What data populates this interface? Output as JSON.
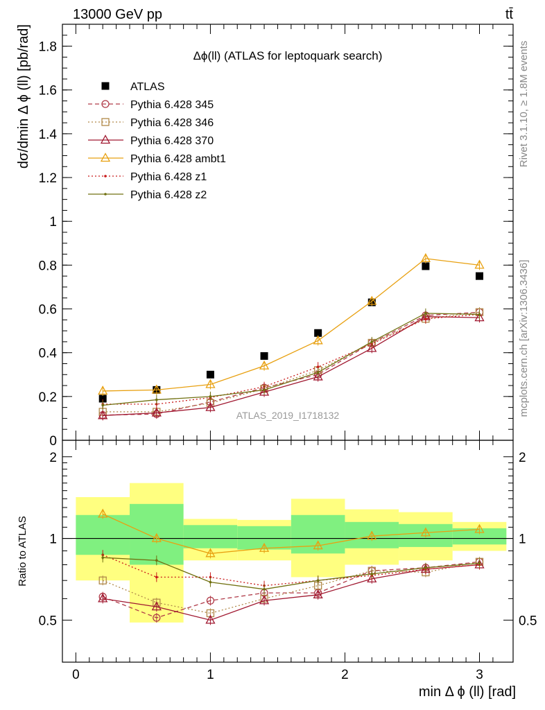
{
  "header": {
    "energy_label": "13000 GeV pp",
    "process_label": "tt̄"
  },
  "side_text": {
    "rivet": "Rivet 3.1.10, ≥ 1.8M events",
    "mcplots": "mcplots.cern.ch [arXiv:1306.3436]"
  },
  "chart_data": [
    {
      "type": "scatter",
      "title": "Δϕ(ll) (ATLAS for leptoquark search)",
      "watermark": "ATLAS_2019_I1718132",
      "xlabel": "min Δ ϕ (ll) [rad]",
      "ylabel": "dσ/dmin Δ ϕ (ll) [pb/rad]",
      "xlim": [
        -0.1,
        3.25
      ],
      "ylim": [
        0,
        1.9
      ],
      "x_ticks": [
        0,
        1,
        2,
        3
      ],
      "y_ticks": [
        0,
        0.2,
        0.4,
        0.6,
        0.8,
        1,
        1.2,
        1.4,
        1.6,
        1.8
      ],
      "y_tick_labels": [
        "0",
        "0.2",
        "0.4",
        "0.6",
        "0.8",
        "1",
        "1.2",
        "1.4",
        "1.6",
        "1.8"
      ],
      "legend_position": "top-left",
      "x": [
        0.2,
        0.6,
        1.0,
        1.4,
        1.8,
        2.2,
        2.6,
        3.0
      ],
      "series": [
        {
          "name": "ATLAS",
          "color": "#000000",
          "marker": "filled-square",
          "line": "none",
          "values": [
            0.19,
            0.23,
            0.3,
            0.385,
            0.49,
            0.63,
            0.795,
            0.75
          ]
        },
        {
          "name": "Pythia 6.428 345",
          "color": "#b03a48",
          "marker": "open-circle",
          "line": "dashed",
          "values": [
            0.115,
            0.12,
            0.175,
            0.24,
            0.3,
            0.445,
            0.57,
            0.585
          ]
        },
        {
          "name": "Pythia 6.428 346",
          "color": "#b08848",
          "marker": "open-square",
          "line": "dotted",
          "values": [
            0.13,
            0.13,
            0.17,
            0.235,
            0.32,
            0.445,
            0.555,
            0.585
          ]
        },
        {
          "name": "Pythia 6.428 370",
          "color": "#a01830",
          "marker": "open-triangle",
          "line": "solid",
          "values": [
            0.113,
            0.125,
            0.15,
            0.22,
            0.29,
            0.42,
            0.565,
            0.56
          ]
        },
        {
          "name": "Pythia 6.428 ambt1",
          "color": "#e8a010",
          "marker": "open-triangle",
          "line": "solid",
          "values": [
            0.225,
            0.23,
            0.255,
            0.34,
            0.455,
            0.635,
            0.83,
            0.8
          ]
        },
        {
          "name": "Pythia 6.428 z1",
          "color": "#c81818",
          "marker": "dot",
          "line": "dotted",
          "values": [
            0.165,
            0.165,
            0.195,
            0.245,
            0.335,
            0.44,
            0.555,
            0.575
          ]
        },
        {
          "name": "Pythia 6.428 z2",
          "color": "#707010",
          "marker": "dot",
          "line": "solid",
          "values": [
            0.16,
            0.185,
            0.2,
            0.23,
            0.31,
            0.45,
            0.58,
            0.575
          ]
        }
      ]
    },
    {
      "type": "scatter",
      "ylabel": "Ratio to ATLAS",
      "xlabel": "min Δ ϕ (ll) [rad]",
      "ylim": [
        0.35,
        2.3
      ],
      "y_ticks": [
        0.5,
        1,
        2
      ],
      "y_tick_labels": [
        "0.5",
        "1",
        "2"
      ],
      "reference_line": 1,
      "bins": [
        [
          0,
          0.4
        ],
        [
          0.4,
          0.8
        ],
        [
          0.8,
          1.2
        ],
        [
          1.2,
          1.6
        ],
        [
          1.6,
          2.0
        ],
        [
          2.0,
          2.4
        ],
        [
          2.4,
          2.8
        ],
        [
          2.8,
          3.2
        ]
      ],
      "band_outer": [
        [
          0.7,
          1.42
        ],
        [
          0.49,
          1.6
        ],
        [
          0.83,
          1.18
        ],
        [
          0.83,
          1.17
        ],
        [
          0.72,
          1.4
        ],
        [
          0.8,
          1.28
        ],
        [
          0.83,
          1.25
        ],
        [
          0.9,
          1.15
        ]
      ],
      "band_inner": [
        [
          0.87,
          1.22
        ],
        [
          0.8,
          1.34
        ],
        [
          0.92,
          1.12
        ],
        [
          0.91,
          1.11
        ],
        [
          0.88,
          1.22
        ],
        [
          0.92,
          1.15
        ],
        [
          0.93,
          1.13
        ],
        [
          0.95,
          1.09
        ]
      ],
      "x": [
        0.2,
        0.6,
        1.0,
        1.4,
        1.8,
        2.2,
        2.6,
        3.0
      ],
      "series": [
        {
          "name": "Pythia 6.428 345",
          "color": "#b03a48",
          "values": [
            0.61,
            0.51,
            0.59,
            0.63,
            0.63,
            0.76,
            0.78,
            0.82
          ]
        },
        {
          "name": "Pythia 6.428 346",
          "color": "#b08848",
          "values": [
            0.7,
            0.58,
            0.53,
            0.6,
            0.67,
            0.76,
            0.75,
            0.82
          ]
        },
        {
          "name": "Pythia 6.428 370",
          "color": "#a01830",
          "values": [
            0.6,
            0.56,
            0.5,
            0.59,
            0.62,
            0.71,
            0.77,
            0.8
          ]
        },
        {
          "name": "Pythia 6.428 ambt1",
          "color": "#e8a010",
          "values": [
            1.23,
            1.0,
            0.88,
            0.92,
            0.94,
            1.02,
            1.05,
            1.08
          ]
        },
        {
          "name": "Pythia 6.428 z1",
          "color": "#c81818",
          "values": [
            0.87,
            0.72,
            0.72,
            0.67,
            0.7,
            0.73,
            0.77,
            0.8
          ]
        },
        {
          "name": "Pythia 6.428 z2",
          "color": "#707010",
          "values": [
            0.85,
            0.83,
            0.69,
            0.65,
            0.7,
            0.74,
            0.78,
            0.81
          ]
        }
      ]
    }
  ]
}
